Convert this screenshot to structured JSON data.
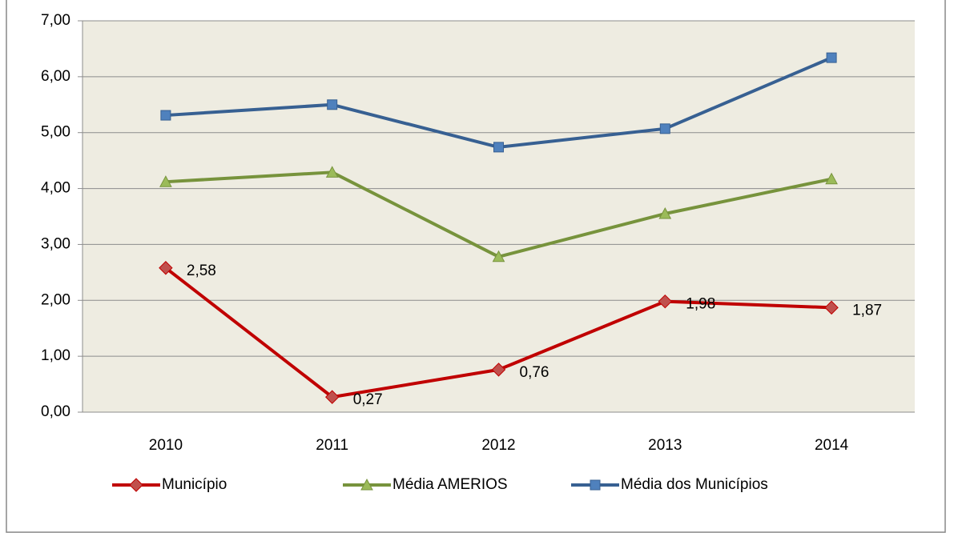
{
  "chart_data": {
    "type": "line",
    "categories": [
      "2010",
      "2011",
      "2012",
      "2013",
      "2014"
    ],
    "series": [
      {
        "name": "Município",
        "color": "#c00000",
        "marker": "diamond",
        "marker_color": "#c0504d",
        "values": [
          2.58,
          0.27,
          0.76,
          1.98,
          1.87
        ],
        "value_labels": [
          "2,58",
          "0,27",
          "0,76",
          "1,98",
          "1,87"
        ]
      },
      {
        "name": "Média AMERIOS",
        "color": "#77933c",
        "marker": "triangle",
        "marker_color": "#9bbb59",
        "values": [
          4.12,
          4.29,
          2.78,
          3.55,
          4.17
        ]
      },
      {
        "name": "Média dos Municípios",
        "color": "#376092",
        "marker": "square",
        "marker_color": "#4f81bd",
        "values": [
          5.31,
          5.5,
          4.74,
          5.07,
          6.34
        ]
      }
    ],
    "ylim": [
      0,
      7
    ],
    "yticks": [
      {
        "value": 0,
        "label": "0,00"
      },
      {
        "value": 1,
        "label": "1,00"
      },
      {
        "value": 2,
        "label": "2,00"
      },
      {
        "value": 3,
        "label": "3,00"
      },
      {
        "value": 4,
        "label": "4,00"
      },
      {
        "value": 5,
        "label": "5,00"
      },
      {
        "value": 6,
        "label": "6,00"
      },
      {
        "value": 7,
        "label": "7,00"
      }
    ],
    "grid": true,
    "legend": "bottom"
  }
}
